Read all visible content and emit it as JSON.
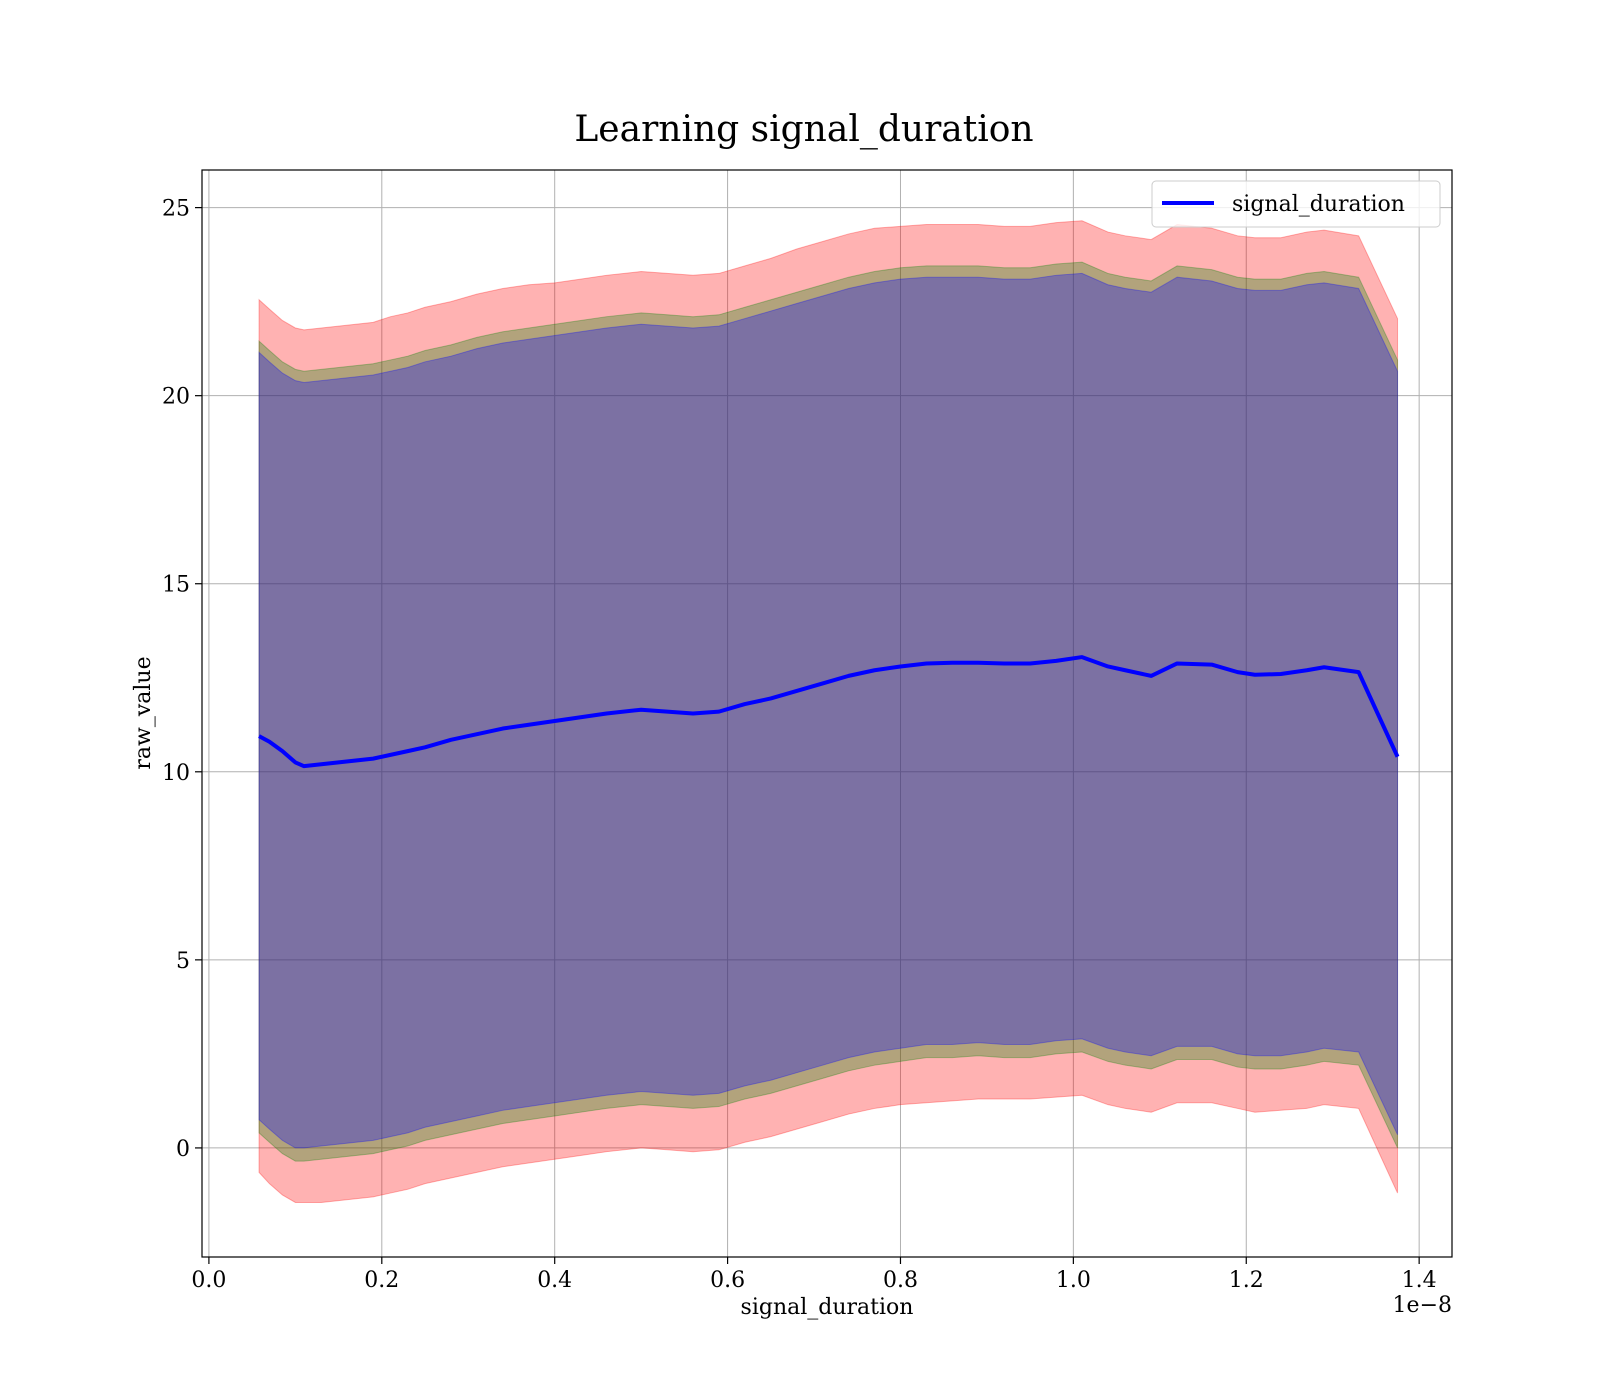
{
  "chart_data": {
    "type": "line",
    "title": "Learning signal_duration",
    "xlabel": "signal_duration",
    "ylabel": "raw_value",
    "x_offset_label": "1e−8",
    "xlim": [
      -0.008,
      1.438
    ],
    "ylim": [
      -2.9,
      26.0
    ],
    "x_ticks": [
      0.0,
      0.2,
      0.4,
      0.6,
      0.8,
      1.0,
      1.2,
      1.4
    ],
    "x_tick_labels": [
      "0.0",
      "0.2",
      "0.4",
      "0.6",
      "0.8",
      "1.0",
      "1.2",
      "1.4"
    ],
    "y_ticks": [
      0,
      5,
      10,
      15,
      20,
      25
    ],
    "y_tick_labels": [
      "0",
      "5",
      "10",
      "15",
      "20",
      "25"
    ],
    "grid": true,
    "legend_position": "top-right",
    "x": [
      0.058,
      0.07,
      0.085,
      0.1,
      0.11,
      0.13,
      0.15,
      0.17,
      0.19,
      0.21,
      0.23,
      0.25,
      0.28,
      0.31,
      0.34,
      0.37,
      0.4,
      0.43,
      0.46,
      0.5,
      0.53,
      0.56,
      0.59,
      0.62,
      0.65,
      0.68,
      0.71,
      0.74,
      0.77,
      0.8,
      0.83,
      0.86,
      0.89,
      0.92,
      0.95,
      0.98,
      1.01,
      1.04,
      1.06,
      1.09,
      1.12,
      1.16,
      1.19,
      1.21,
      1.24,
      1.27,
      1.29,
      1.33,
      1.375
    ],
    "series": [
      {
        "name": "signal_duration",
        "color": "#0000ff",
        "values": [
          10.95,
          10.8,
          10.55,
          10.25,
          10.15,
          10.2,
          10.25,
          10.3,
          10.35,
          10.45,
          10.55,
          10.65,
          10.85,
          11.0,
          11.15,
          11.25,
          11.35,
          11.45,
          11.55,
          11.65,
          11.6,
          11.55,
          11.6,
          11.8,
          11.95,
          12.15,
          12.35,
          12.55,
          12.7,
          12.8,
          12.88,
          12.9,
          12.9,
          12.88,
          12.88,
          12.95,
          13.05,
          12.8,
          12.7,
          12.55,
          12.88,
          12.85,
          12.65,
          12.58,
          12.6,
          12.7,
          12.78,
          12.65,
          10.4
        ]
      }
    ],
    "bands": [
      {
        "color": "#ff0000",
        "opacity": 0.3,
        "upper": [
          22.55,
          22.3,
          22.0,
          21.8,
          21.75,
          21.8,
          21.85,
          21.9,
          21.95,
          22.1,
          22.2,
          22.35,
          22.5,
          22.7,
          22.85,
          22.95,
          23.0,
          23.1,
          23.2,
          23.3,
          23.25,
          23.2,
          23.25,
          23.45,
          23.65,
          23.9,
          24.1,
          24.3,
          24.45,
          24.5,
          24.55,
          24.55,
          24.55,
          24.5,
          24.5,
          24.6,
          24.65,
          24.35,
          24.25,
          24.15,
          24.55,
          24.45,
          24.25,
          24.2,
          24.2,
          24.35,
          24.4,
          24.25,
          22.05
        ],
        "lower": [
          -0.65,
          -0.95,
          -1.25,
          -1.45,
          -1.45,
          -1.45,
          -1.4,
          -1.35,
          -1.3,
          -1.2,
          -1.1,
          -0.95,
          -0.8,
          -0.65,
          -0.5,
          -0.4,
          -0.3,
          -0.2,
          -0.1,
          0.0,
          -0.05,
          -0.1,
          -0.05,
          0.15,
          0.3,
          0.5,
          0.7,
          0.9,
          1.05,
          1.15,
          1.2,
          1.25,
          1.3,
          1.3,
          1.3,
          1.35,
          1.4,
          1.15,
          1.05,
          0.95,
          1.2,
          1.2,
          1.05,
          0.95,
          1.0,
          1.05,
          1.15,
          1.05,
          -1.2
        ]
      },
      {
        "color": "#008000",
        "opacity": 0.3,
        "upper": [
          21.45,
          21.2,
          20.9,
          20.7,
          20.65,
          20.7,
          20.75,
          20.8,
          20.85,
          20.95,
          21.05,
          21.2,
          21.35,
          21.55,
          21.7,
          21.8,
          21.9,
          22.0,
          22.1,
          22.2,
          22.15,
          22.1,
          22.15,
          22.35,
          22.55,
          22.75,
          22.95,
          23.15,
          23.3,
          23.4,
          23.45,
          23.45,
          23.45,
          23.4,
          23.4,
          23.5,
          23.55,
          23.25,
          23.15,
          23.05,
          23.45,
          23.35,
          23.15,
          23.1,
          23.1,
          23.25,
          23.3,
          23.15,
          20.95
        ],
        "lower": [
          0.4,
          0.15,
          -0.15,
          -0.35,
          -0.35,
          -0.3,
          -0.25,
          -0.2,
          -0.15,
          -0.05,
          0.05,
          0.2,
          0.35,
          0.5,
          0.65,
          0.75,
          0.85,
          0.95,
          1.05,
          1.15,
          1.1,
          1.05,
          1.1,
          1.3,
          1.45,
          1.65,
          1.85,
          2.05,
          2.2,
          2.3,
          2.4,
          2.4,
          2.45,
          2.4,
          2.4,
          2.5,
          2.55,
          2.3,
          2.2,
          2.1,
          2.35,
          2.35,
          2.15,
          2.1,
          2.1,
          2.2,
          2.3,
          2.2,
          0.0
        ]
      },
      {
        "color": "#0000ff",
        "opacity": 0.3,
        "upper": [
          21.15,
          20.9,
          20.6,
          20.4,
          20.35,
          20.4,
          20.45,
          20.5,
          20.55,
          20.65,
          20.75,
          20.9,
          21.05,
          21.25,
          21.4,
          21.5,
          21.6,
          21.7,
          21.8,
          21.9,
          21.85,
          21.8,
          21.85,
          22.05,
          22.25,
          22.45,
          22.65,
          22.85,
          23.0,
          23.1,
          23.15,
          23.15,
          23.15,
          23.1,
          23.1,
          23.2,
          23.25,
          22.95,
          22.85,
          22.75,
          23.15,
          23.05,
          22.85,
          22.8,
          22.8,
          22.95,
          23.0,
          22.85,
          20.65
        ],
        "lower": [
          0.75,
          0.5,
          0.2,
          0.0,
          0.0,
          0.05,
          0.1,
          0.15,
          0.2,
          0.3,
          0.4,
          0.55,
          0.7,
          0.85,
          1.0,
          1.1,
          1.2,
          1.3,
          1.4,
          1.5,
          1.45,
          1.4,
          1.45,
          1.65,
          1.8,
          2.0,
          2.2,
          2.4,
          2.55,
          2.65,
          2.75,
          2.75,
          2.8,
          2.75,
          2.75,
          2.85,
          2.9,
          2.65,
          2.55,
          2.45,
          2.7,
          2.7,
          2.5,
          2.45,
          2.45,
          2.55,
          2.65,
          2.55,
          0.35
        ]
      }
    ]
  }
}
